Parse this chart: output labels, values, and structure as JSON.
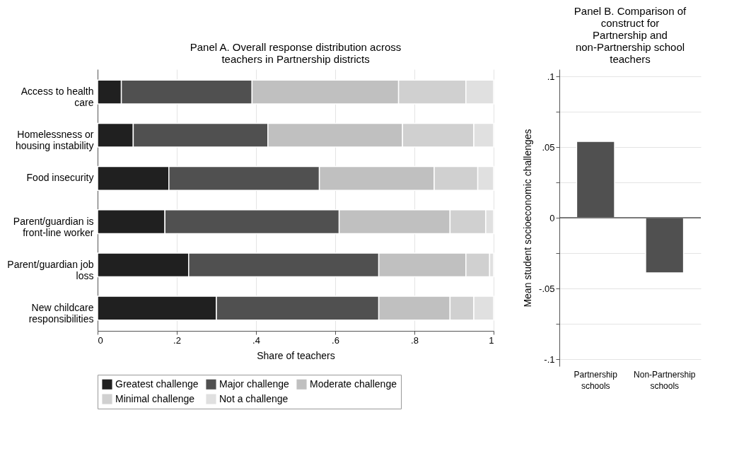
{
  "chart_data": [
    {
      "type": "bar",
      "orientation": "horizontal",
      "stacked": true,
      "title": "Panel A. Overall response distribution across teachers in Partnership districts",
      "xlabel": "Share of teachers",
      "categories": [
        "Access to health care",
        "Homelessness or housing instability",
        "Food insecurity",
        "Parent/guardian is front-line worker",
        "Parent/guardian job loss",
        "New childcare responsibilities"
      ],
      "series": [
        {
          "name": "Greatest challenge",
          "color": "#202020",
          "values": [
            0.06,
            0.09,
            0.18,
            0.17,
            0.23,
            0.3
          ]
        },
        {
          "name": "Major challenge",
          "color": "#505050",
          "values": [
            0.33,
            0.34,
            0.38,
            0.44,
            0.48,
            0.41
          ]
        },
        {
          "name": "Moderate challenge",
          "color": "#c0c0c0",
          "values": [
            0.37,
            0.34,
            0.29,
            0.28,
            0.22,
            0.18
          ]
        },
        {
          "name": "Minimal challenge",
          "color": "#d0d0d0",
          "values": [
            0.17,
            0.18,
            0.11,
            0.09,
            0.06,
            0.06
          ]
        },
        {
          "name": "Not a challenge",
          "color": "#e0e0e0",
          "values": [
            0.07,
            0.05,
            0.04,
            0.02,
            0.01,
            0.05
          ]
        }
      ],
      "xlim": [
        0,
        1
      ],
      "xticks": [
        0,
        {
          "value": 0.2,
          "label": ".2"
        },
        {
          "value": 0.4,
          "label": ".4"
        },
        {
          "value": 0.6,
          "label": ".6"
        },
        {
          "value": 0.8,
          "label": ".8"
        },
        1
      ],
      "grid": "x",
      "legend": "bottom"
    },
    {
      "type": "bar",
      "title": "Panel B. Comparison of construct for Partnership and non-Partnership school teachers",
      "ylabel": "Mean student socioeconomic challenges",
      "categories": [
        "Partnership schools",
        "Non-Partnership schools"
      ],
      "values": [
        0.054,
        -0.039
      ],
      "color": "#505050",
      "ylim": [
        -0.105,
        0.105
      ],
      "yticks": [
        {
          "value": -0.1,
          "label": "-.1"
        },
        {
          "value": -0.075,
          "label": null
        },
        {
          "value": -0.05,
          "label": "-.05"
        },
        {
          "value": -0.025,
          "label": null
        },
        0,
        {
          "value": 0.025,
          "label": null
        },
        {
          "value": 0.05,
          "label": ".05"
        },
        {
          "value": 0.075,
          "label": null
        },
        {
          "value": 0.1,
          "label": ".1"
        }
      ],
      "grid": "y",
      "ref_lines": [
        {
          "axis": "y",
          "value": 0,
          "color": "#505050"
        }
      ]
    }
  ]
}
